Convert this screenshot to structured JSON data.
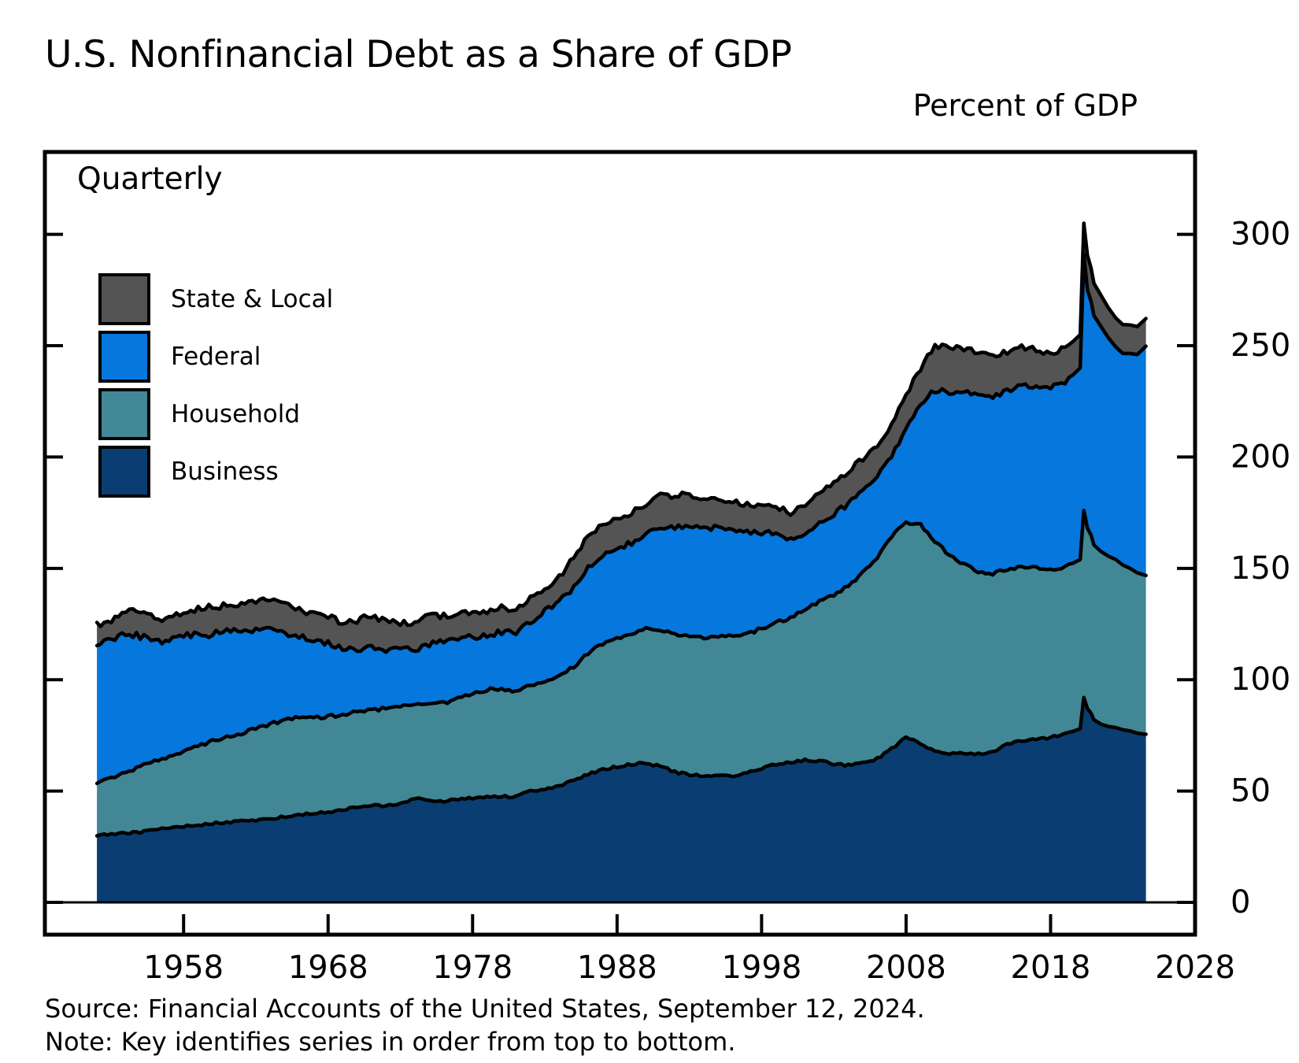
{
  "header": {
    "title": "U.S. Nonfinancial Debt as a Share of GDP",
    "y_axis_title": "Percent of GDP"
  },
  "plot": {
    "frequency_label": "Quarterly"
  },
  "legend": {
    "items": [
      {
        "label": "State & Local",
        "color": "#545454"
      },
      {
        "label": "Federal",
        "color": "#0677DC"
      },
      {
        "label": "Household",
        "color": "#418795"
      },
      {
        "label": "Business",
        "color": "#0A3E72"
      }
    ]
  },
  "footer": {
    "source": "Source: Financial Accounts of the United States, September 12, 2024.",
    "note": "Note: Key identifies series in order from top to bottom."
  },
  "chart_data": {
    "type": "area",
    "stacked": true,
    "title": "U.S. Nonfinancial Debt as a Share of GDP",
    "ylabel": "Percent of GDP",
    "frequency": "Quarterly",
    "legend_position": "upper left",
    "legend_order_note": "Key identifies series in order from top to bottom",
    "grid": false,
    "xlim": [
      1948.4,
      2028
    ],
    "ylim": [
      0,
      337
    ],
    "x_ticks": [
      1958,
      1968,
      1978,
      1988,
      1998,
      2008,
      2018,
      2028
    ],
    "y_ticks": [
      0,
      50,
      100,
      150,
      200,
      250,
      300
    ],
    "x": [
      1952,
      1953,
      1954,
      1955,
      1956,
      1957,
      1958,
      1959,
      1960,
      1961,
      1962,
      1963,
      1964,
      1965,
      1966,
      1967,
      1968,
      1969,
      1970,
      1971,
      1972,
      1973,
      1974,
      1975,
      1976,
      1977,
      1978,
      1979,
      1980,
      1981,
      1982,
      1983,
      1984,
      1985,
      1986,
      1987,
      1988,
      1989,
      1990,
      1991,
      1992,
      1993,
      1994,
      1995,
      1996,
      1997,
      1998,
      1999,
      2000,
      2001,
      2002,
      2003,
      2004,
      2005,
      2006,
      2007,
      2008,
      2009,
      2010,
      2011,
      2012,
      2013,
      2014,
      2015,
      2016,
      2017,
      2018,
      2019,
      2020.05,
      2020.3,
      2020.55,
      2020.8,
      2021,
      2021.5,
      2022,
      2022.5,
      2023,
      2023.5,
      2024,
      2024.6
    ],
    "series": [
      {
        "name": "Business",
        "color": "#0A3E72",
        "values": [
          30,
          30.5,
          31,
          31.5,
          32.5,
          33.5,
          34,
          34.5,
          35.5,
          36,
          36.5,
          37,
          37.5,
          38.5,
          39.5,
          40,
          40.5,
          41.5,
          43,
          43.5,
          43.5,
          44.5,
          46.5,
          46,
          45.5,
          46,
          47,
          47.5,
          47.5,
          47.5,
          50,
          50.5,
          52.5,
          54.5,
          57.5,
          59.5,
          61,
          62,
          62.5,
          61,
          58.5,
          57.5,
          56.5,
          57,
          57,
          58,
          60,
          62,
          63,
          64,
          63.5,
          62,
          61.5,
          62.5,
          64.5,
          69,
          74,
          71.5,
          68,
          67,
          67,
          66.5,
          67.5,
          71,
          72.5,
          73,
          74,
          75.5,
          78,
          92,
          87,
          85,
          82,
          80,
          79,
          78.5,
          77.5,
          77,
          76,
          75.5
        ]
      },
      {
        "name": "Household",
        "color": "#418795",
        "values": [
          24,
          25.5,
          27,
          29.5,
          31,
          32,
          33.5,
          35.5,
          37,
          38.5,
          39.5,
          41,
          42.5,
          43.5,
          43.5,
          43,
          43,
          42.5,
          42.5,
          43,
          43.5,
          43.5,
          43,
          43,
          44,
          45.5,
          46.5,
          48,
          48.5,
          47.5,
          47.5,
          48.5,
          49,
          51.5,
          54.5,
          56.5,
          57.5,
          59,
          60.5,
          61.5,
          61.5,
          62,
          62,
          62.5,
          63,
          62.5,
          63,
          64,
          64.5,
          67.5,
          71.5,
          76,
          80.5,
          85.5,
          90.5,
          95,
          97,
          98,
          94,
          89,
          85,
          82,
          80,
          78.5,
          78,
          77,
          75.5,
          75,
          76,
          84,
          81,
          80,
          78.5,
          77.5,
          76.5,
          75.5,
          74,
          73,
          72,
          71.3
        ]
      },
      {
        "name": "Federal",
        "color": "#0677DC",
        "values": [
          62,
          61.5,
          63,
          58.5,
          54.5,
          51.5,
          52.5,
          50,
          48,
          47,
          45.5,
          44,
          42,
          39,
          36,
          34.5,
          32.5,
          29.5,
          28.5,
          28,
          26.5,
          25,
          24,
          26.5,
          27.5,
          27,
          26,
          24.5,
          25.5,
          25.5,
          28.5,
          31.5,
          33.5,
          36,
          38.5,
          40,
          40.5,
          40.5,
          42.5,
          46,
          48.5,
          50,
          49.5,
          49,
          48,
          45.5,
          43,
          39.5,
          35,
          34,
          35,
          36.5,
          37,
          36.5,
          36,
          36.5,
          42,
          54,
          68,
          73,
          77,
          79,
          80,
          80,
          82,
          81.5,
          82,
          83,
          86,
          115,
          107,
          105,
          103,
          101,
          98,
          95.5,
          95,
          96.5,
          98,
          103
        ]
      },
      {
        "name": "State & Local",
        "color": "#545454",
        "values": [
          8.5,
          9,
          10,
          10,
          10,
          10.5,
          11,
          11.5,
          12,
          12.5,
          12.5,
          13,
          13,
          13,
          12.5,
          12.5,
          12.5,
          12.5,
          13,
          13.5,
          13,
          12.5,
          12.5,
          12.5,
          12,
          11.5,
          11,
          10.5,
          10.5,
          10,
          10.5,
          11,
          11,
          12.5,
          14,
          14,
          13.5,
          13.5,
          13.5,
          14,
          14,
          14,
          13.5,
          13,
          12.5,
          12.5,
          12.5,
          12.5,
          12,
          13,
          14,
          14.5,
          14.5,
          14.5,
          14.5,
          14.5,
          15,
          16.5,
          20,
          20,
          20,
          19,
          18,
          17.5,
          17,
          16.5,
          15.5,
          15,
          15,
          14,
          15.5,
          15,
          14.5,
          14,
          13.5,
          13,
          13,
          12.8,
          12.6,
          12.4
        ]
      }
    ]
  },
  "style": {
    "outline_color": "#000000",
    "frame_color": "#000000",
    "background": "#ffffff"
  }
}
